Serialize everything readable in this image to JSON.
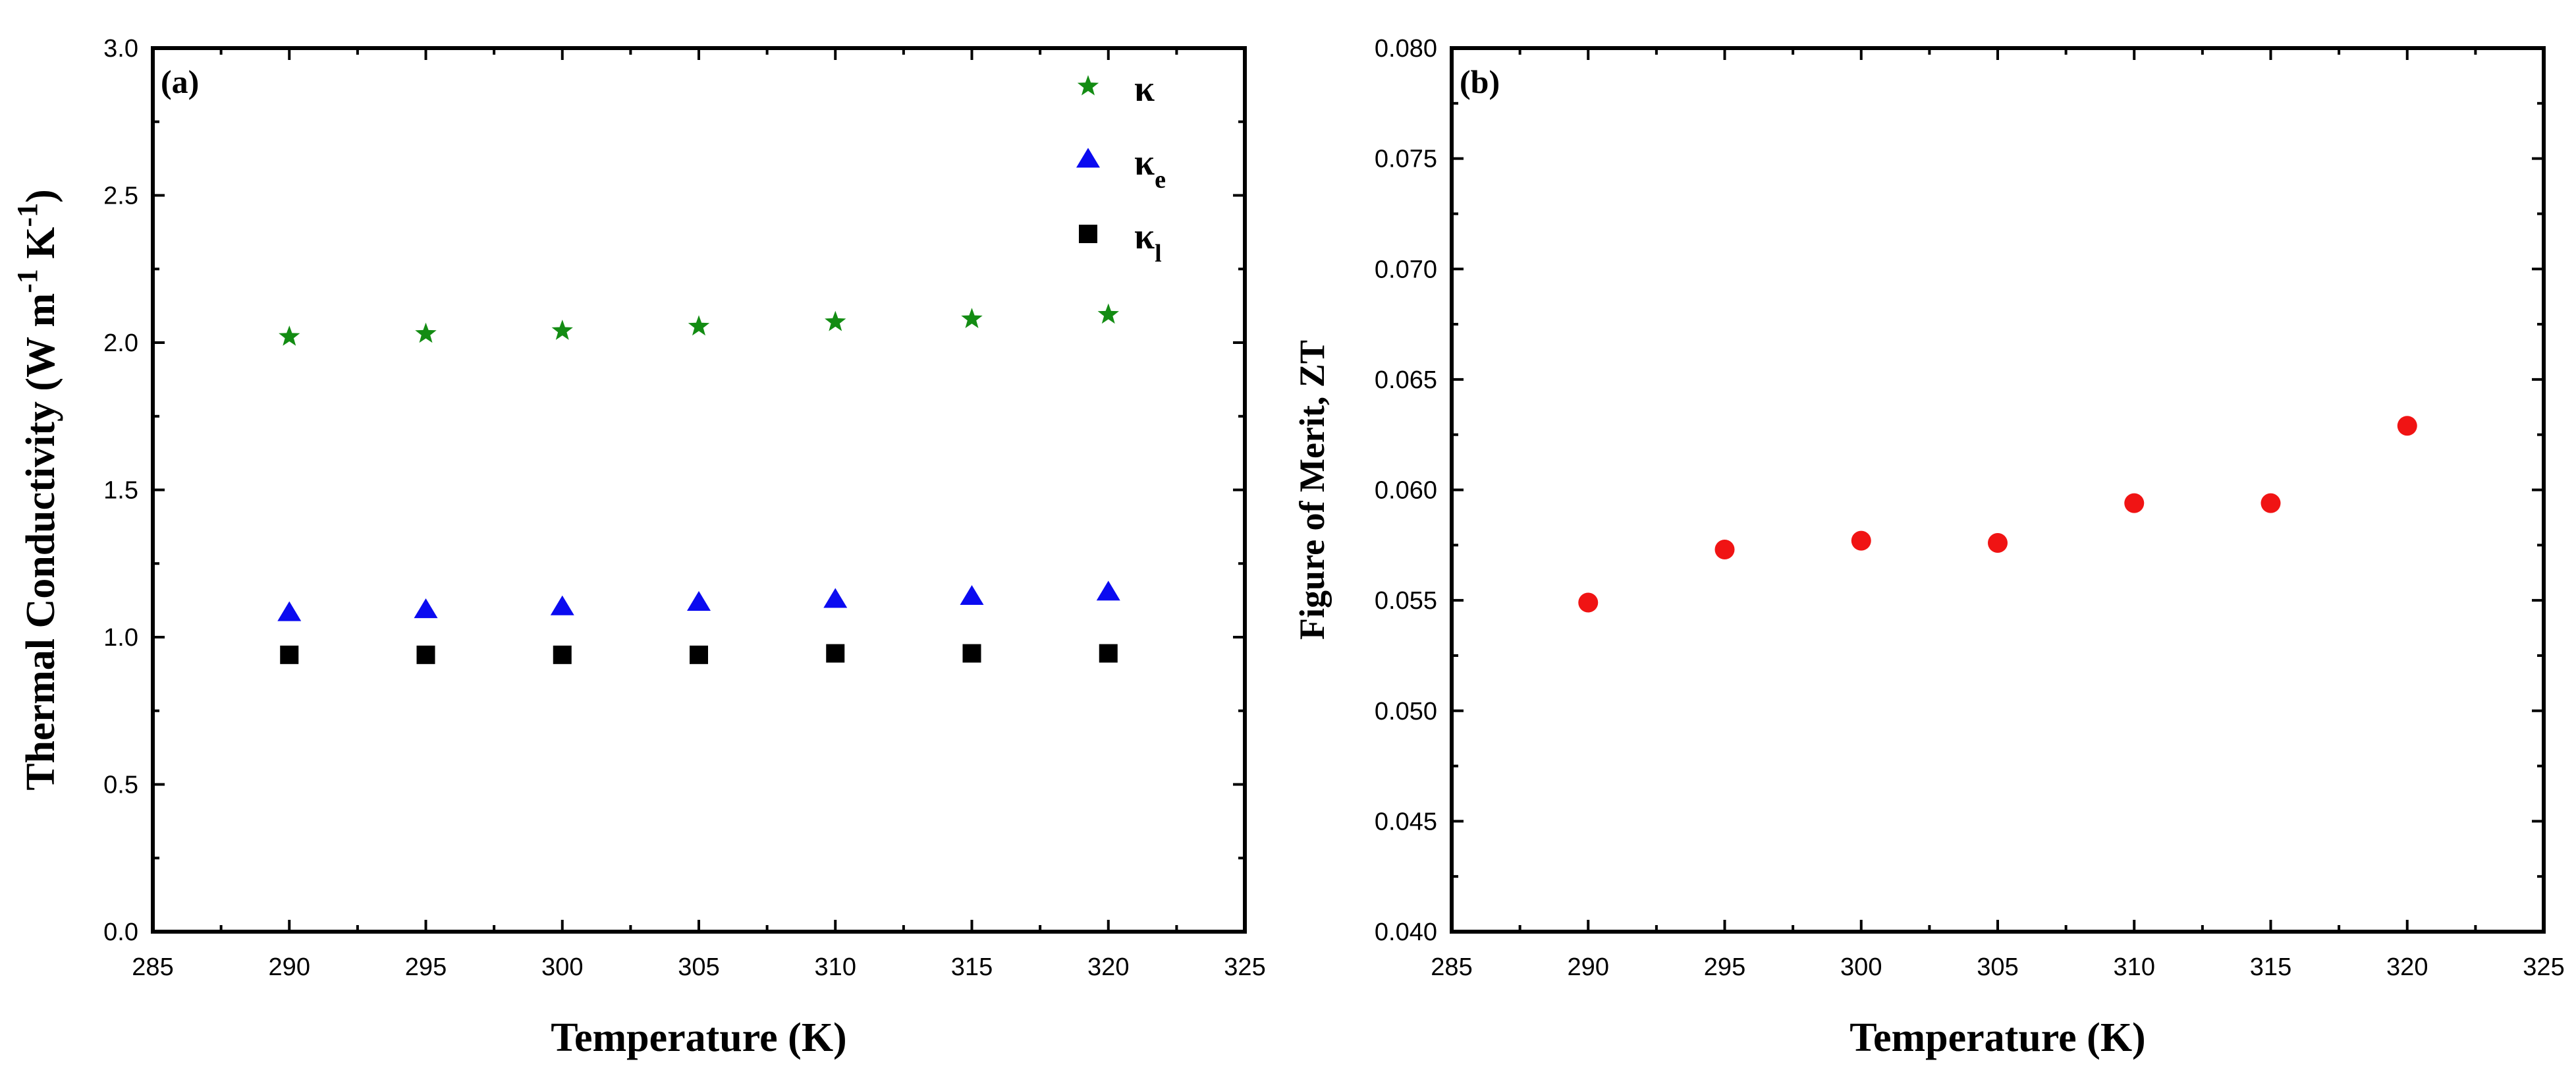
{
  "chart_data": [
    {
      "type": "scatter",
      "panel_label": "(a)",
      "xlabel": "Temperature (K)",
      "ylabel": "Thermal Conductivity (W m-1 K-1)",
      "ylabel_parts": {
        "main": "Thermal Conductivity (W m",
        "sup1": "-1",
        "mid": " K",
        "sup2": "-1",
        "end": ")"
      },
      "xlim": [
        285,
        325
      ],
      "ylim": [
        0.0,
        3.0
      ],
      "x_ticks": [
        285,
        290,
        295,
        300,
        305,
        310,
        315,
        320,
        325
      ],
      "y_ticks": [
        "0.0",
        "0.5",
        "1.0",
        "1.5",
        "2.0",
        "2.5",
        "3.0"
      ],
      "legend_position": "top-right",
      "series": [
        {
          "name": "κ",
          "legend_main": "κ",
          "legend_sub": "",
          "marker": "star",
          "color": "#138c13",
          "x": [
            290,
            295,
            300,
            305,
            310,
            315,
            320
          ],
          "y": [
            2.02,
            2.03,
            2.04,
            2.055,
            2.07,
            2.08,
            2.095
          ]
        },
        {
          "name": "κe",
          "legend_main": "κ",
          "legend_sub": "e",
          "marker": "triangle",
          "color": "#0b0bf0",
          "x": [
            290,
            295,
            300,
            305,
            310,
            315,
            320
          ],
          "y": [
            1.08,
            1.09,
            1.1,
            1.115,
            1.125,
            1.135,
            1.15
          ]
        },
        {
          "name": "κl",
          "legend_main": "κ",
          "legend_sub": "l",
          "marker": "square",
          "color": "#000000",
          "x": [
            290,
            295,
            300,
            305,
            310,
            315,
            320
          ],
          "y": [
            0.94,
            0.94,
            0.94,
            0.94,
            0.945,
            0.945,
            0.945
          ]
        }
      ]
    },
    {
      "type": "scatter",
      "panel_label": "(b)",
      "xlabel": "Temperature (K)",
      "ylabel": "Figure of Merit,  ZT",
      "xlim": [
        285,
        325
      ],
      "ylim": [
        0.04,
        0.08
      ],
      "x_ticks": [
        285,
        290,
        295,
        300,
        305,
        310,
        315,
        320,
        325
      ],
      "y_ticks": [
        "0.040",
        "0.045",
        "0.050",
        "0.055",
        "0.060",
        "0.065",
        "0.070",
        "0.075",
        "0.080"
      ],
      "series": [
        {
          "marker": "circle",
          "color": "#f01414",
          "x": [
            290,
            295,
            300,
            305,
            310,
            315,
            320
          ],
          "y": [
            0.0549,
            0.0573,
            0.0577,
            0.0576,
            0.0594,
            0.0594,
            0.0629
          ]
        }
      ]
    }
  ]
}
